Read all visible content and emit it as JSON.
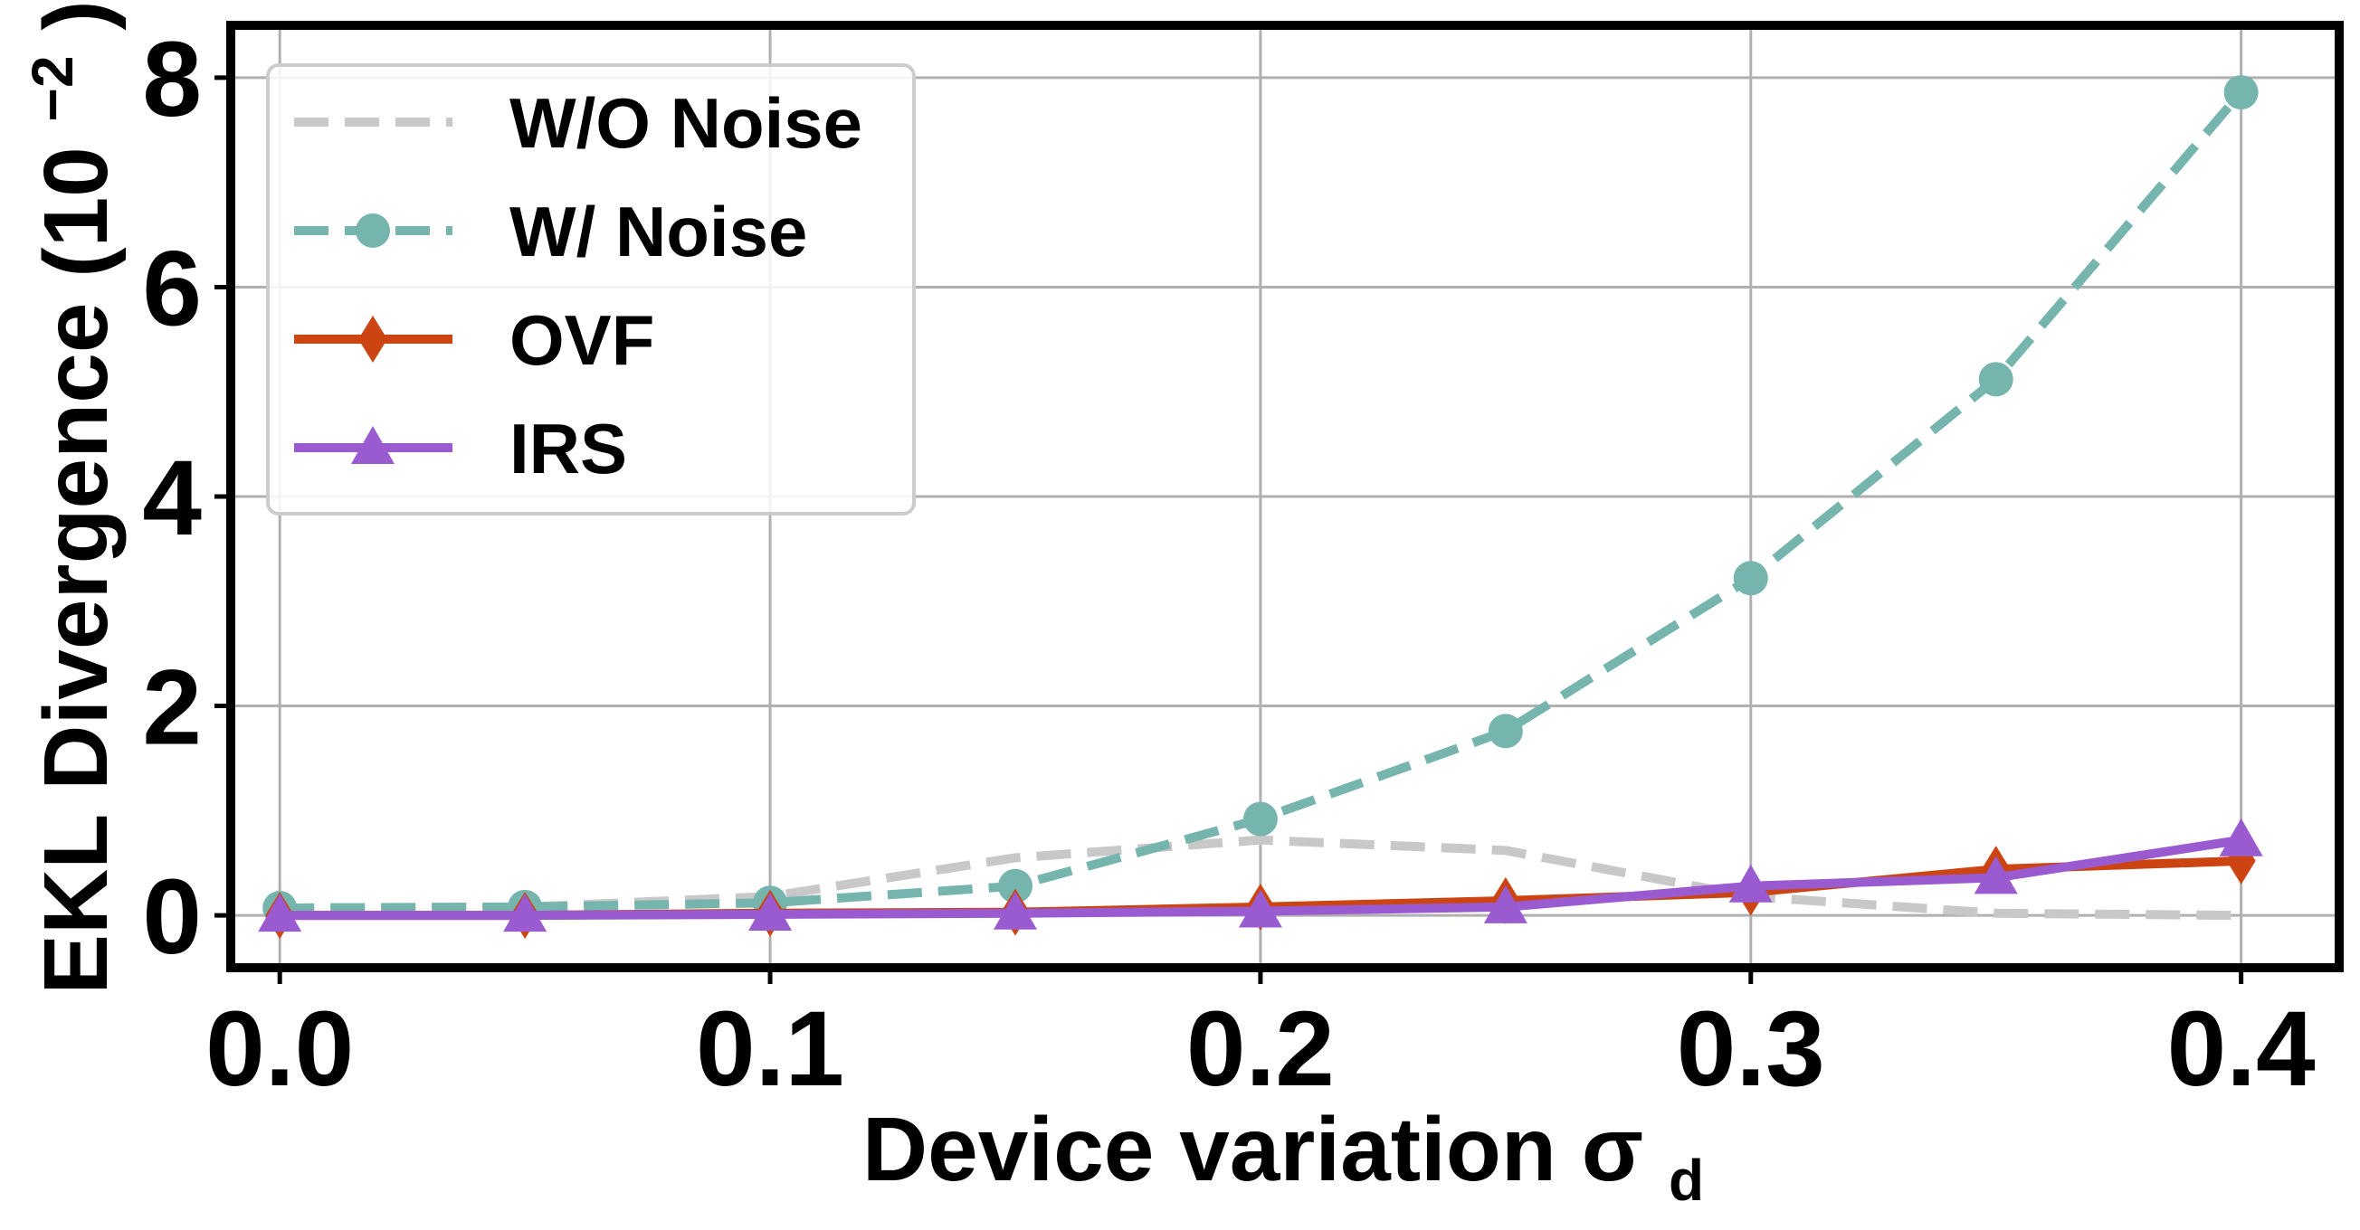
{
  "chart_data": {
    "type": "line",
    "title": "",
    "xlabel": "Device variation",
    "xlabel_symbol": "σ",
    "xlabel_subscript": "d",
    "ylabel": "EKL Divergence",
    "ylabel_unit_base": "(10",
    "ylabel_unit_exp": "−2",
    "ylabel_unit_close": ")",
    "x": [
      0.0,
      0.05,
      0.1,
      0.15,
      0.2,
      0.25,
      0.3,
      0.35,
      0.4
    ],
    "xlim": [
      -0.01,
      0.42
    ],
    "ylim": [
      -0.5,
      8.5
    ],
    "xticks": [
      "0.0",
      "0.1",
      "0.2",
      "0.3",
      "0.4"
    ],
    "xtick_values": [
      0.0,
      0.1,
      0.2,
      0.3,
      0.4
    ],
    "yticks": [
      "0",
      "2",
      "4",
      "6",
      "8"
    ],
    "ytick_values": [
      0,
      2,
      4,
      6,
      8
    ],
    "grid": true,
    "legend_position": "top-left",
    "series": [
      {
        "name": "W/O Noise",
        "values": [
          0.07,
          0.08,
          0.18,
          0.55,
          0.72,
          0.62,
          0.18,
          0.02,
          0.0
        ],
        "color": "#c8c8c8",
        "dash": "dashed",
        "marker": "none"
      },
      {
        "name": "W/ Noise",
        "values": [
          0.07,
          0.08,
          0.12,
          0.28,
          0.92,
          1.76,
          3.22,
          5.12,
          7.86
        ],
        "color": "#76b4ae",
        "dash": "dashed",
        "marker": "circle"
      },
      {
        "name": "OVF",
        "values": [
          0.0,
          0.0,
          0.02,
          0.03,
          0.08,
          0.14,
          0.22,
          0.44,
          0.52
        ],
        "color": "#cc4412",
        "dash": "solid",
        "marker": "diamond"
      },
      {
        "name": "IRS",
        "values": [
          0.0,
          0.0,
          0.01,
          0.02,
          0.04,
          0.08,
          0.28,
          0.36,
          0.72
        ],
        "color": "#9a5bd0",
        "dash": "solid",
        "marker": "triangle"
      }
    ]
  }
}
